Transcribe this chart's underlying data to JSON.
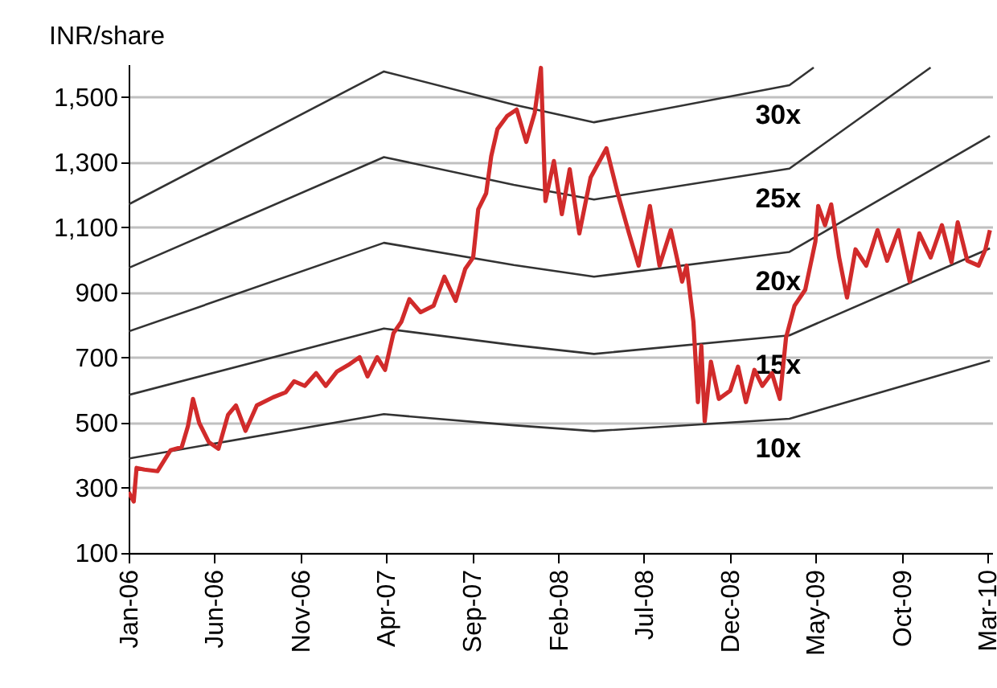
{
  "chart_data": {
    "type": "line",
    "ylabel": "INR/share",
    "xlim": [
      "2006-01-01",
      "2010-03-10"
    ],
    "xticks": [
      {
        "value": "2006-01",
        "label": "Jan-06"
      },
      {
        "value": "2006-06",
        "label": "Jun-06"
      },
      {
        "value": "2006-11",
        "label": "Nov-06"
      },
      {
        "value": "2007-04",
        "label": "Apr-07"
      },
      {
        "value": "2007-09",
        "label": "Sep-07"
      },
      {
        "value": "2008-02",
        "label": "Feb-08"
      },
      {
        "value": "2008-07",
        "label": "Jul-08"
      },
      {
        "value": "2008-12",
        "label": "Dec-08"
      },
      {
        "value": "2009-05",
        "label": "May-09"
      },
      {
        "value": "2009-10",
        "label": "Oct-09"
      },
      {
        "value": "2010-03",
        "label": "Mar-10"
      }
    ],
    "ylim": [
      100,
      1600
    ],
    "yticks": [
      100,
      300,
      500,
      700,
      900,
      {
        "value": 1100,
        "label": "1,100"
      },
      {
        "value": 1300,
        "label": "1,300"
      },
      {
        "value": 1500,
        "label": "1,500"
      }
    ],
    "grid": "y",
    "legend": false,
    "line_style": "solid",
    "marker": "none",
    "series": [
      {
        "name": "30x",
        "color": "#333333",
        "x": [
          "2006-01-01",
          "2007-03-29",
          "2007-11-14",
          "2008-04-04",
          "2009-03-16",
          "2009-04-28"
        ],
        "values": [
          1170,
          1578,
          1476,
          1422,
          1536,
          1590
        ]
      },
      {
        "name": "25x",
        "color": "#333333",
        "x": [
          "2006-01-01",
          "2007-03-29",
          "2007-11-14",
          "2008-04-04",
          "2009-03-16",
          "2009-11-21"
        ],
        "values": [
          975,
          1315,
          1230,
          1185,
          1280,
          1590
        ]
      },
      {
        "name": "20x",
        "color": "#333333",
        "x": [
          "2006-01-01",
          "2007-03-29",
          "2007-11-14",
          "2008-04-04",
          "2009-03-16",
          "2010-03-06"
        ],
        "values": [
          780,
          1052,
          984,
          948,
          1024,
          1380
        ]
      },
      {
        "name": "15x",
        "color": "#333333",
        "x": [
          "2006-01-01",
          "2007-03-29",
          "2007-11-14",
          "2008-04-04",
          "2009-03-16",
          "2010-03-06"
        ],
        "values": [
          585,
          789,
          738,
          711,
          768,
          1035
        ]
      },
      {
        "name": "10x",
        "color": "#333333",
        "x": [
          "2006-01-01",
          "2007-03-29",
          "2007-11-14",
          "2008-04-04",
          "2009-03-16",
          "2010-03-06"
        ],
        "values": [
          390,
          526,
          492,
          474,
          512,
          690
        ]
      },
      {
        "color": "#d12b2b",
        "x": [
          "2006-01-01",
          "2006-01-10",
          "2006-01-15",
          "2006-01-29",
          "2006-02-21",
          "2006-03-16",
          "2006-04-05",
          "2006-04-16",
          "2006-04-25",
          "2006-05-06",
          "2006-05-23",
          "2006-06-09",
          "2006-06-26",
          "2006-07-10",
          "2006-07-27",
          "2006-08-16",
          "2006-09-14",
          "2006-10-06",
          "2006-10-21",
          "2006-11-09",
          "2006-11-29",
          "2006-12-16",
          "2007-01-05",
          "2007-01-25",
          "2007-02-14",
          "2007-02-28",
          "2007-03-17",
          "2007-03-31",
          "2007-04-15",
          "2007-04-29",
          "2007-05-13",
          "2007-06-02",
          "2007-06-25",
          "2007-07-14",
          "2007-08-03",
          "2007-08-20",
          "2007-09-03",
          "2007-09-12",
          "2007-09-26",
          "2007-10-05",
          "2007-10-16",
          "2007-11-02",
          "2007-11-19",
          "2007-12-06",
          "2007-12-21",
          "2008-01-01",
          "2008-01-09",
          "2008-01-24",
          "2008-02-07",
          "2008-02-21",
          "2008-03-09",
          "2008-03-29",
          "2008-04-26",
          "2008-05-16",
          "2008-06-05",
          "2008-06-22",
          "2008-07-12",
          "2008-07-29",
          "2008-08-18",
          "2008-09-07",
          "2008-09-15",
          "2008-09-27",
          "2008-10-05",
          "2008-10-11",
          "2008-10-17",
          "2008-10-28",
          "2008-11-11",
          "2008-12-01",
          "2008-12-15",
          "2008-12-29",
          "2009-01-13",
          "2009-01-27",
          "2009-02-13",
          "2009-02-27",
          "2009-03-10",
          "2009-03-25",
          "2009-04-13",
          "2009-05-01",
          "2009-05-06",
          "2009-05-18",
          "2009-05-29",
          "2009-06-12",
          "2009-06-26",
          "2009-07-11",
          "2009-07-30",
          "2009-08-19",
          "2009-09-05",
          "2009-09-25",
          "2009-10-15",
          "2009-11-01",
          "2009-11-21",
          "2009-12-11",
          "2009-12-28",
          "2010-01-08",
          "2010-01-25",
          "2010-02-14",
          "2010-02-26",
          "2010-03-06"
        ],
        "values": [
          287,
          258,
          361,
          356,
          351,
          415,
          425,
          489,
          573,
          499,
          440,
          420,
          524,
          553,
          475,
          553,
          578,
          593,
          627,
          613,
          652,
          613,
          657,
          677,
          701,
          642,
          701,
          662,
          775,
          810,
          879,
          839,
          859,
          948,
          874,
          972,
          1007,
          1155,
          1204,
          1318,
          1401,
          1441,
          1461,
          1362,
          1451,
          1589,
          1180,
          1303,
          1140,
          1278,
          1081,
          1253,
          1342,
          1204,
          1081,
          982,
          1165,
          982,
          1091,
          933,
          982,
          810,
          563,
          736,
          504,
          687,
          573,
          598,
          672,
          563,
          662,
          613,
          652,
          573,
          761,
          859,
          908,
          1056,
          1165,
          1106,
          1170,
          1007,
          884,
          1032,
          982,
          1091,
          997,
          1091,
          933,
          1081,
          1007,
          1106,
          992,
          1115,
          997,
          982,
          1032,
          1091
        ]
      }
    ]
  }
}
